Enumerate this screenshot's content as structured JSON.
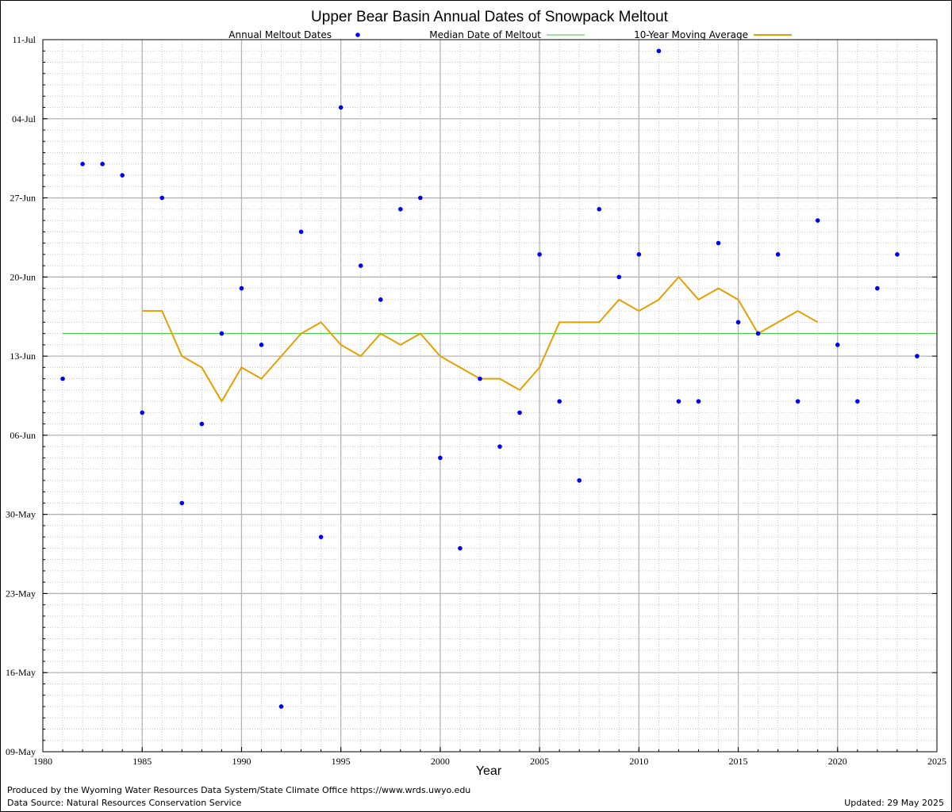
{
  "chart_data": {
    "type": "scatter",
    "title": "Upper Bear Basin Annual Dates of Snowpack Meltout",
    "xlabel": "Year",
    "ylabel": "",
    "xlim": [
      1980,
      2025
    ],
    "x_ticks": [
      1980,
      1985,
      1990,
      1995,
      2000,
      2005,
      2010,
      2015,
      2020,
      2025
    ],
    "y_unit": "day of year (non-leap), tick labels shown as dates",
    "ylim": [
      129,
      192
    ],
    "y_ticks": [
      {
        "value": 129,
        "label": "09-May"
      },
      {
        "value": 136,
        "label": "16-May"
      },
      {
        "value": 143,
        "label": "23-May"
      },
      {
        "value": 150,
        "label": "30-May"
      },
      {
        "value": 157,
        "label": "06-Jun"
      },
      {
        "value": 164,
        "label": "13-Jun"
      },
      {
        "value": 171,
        "label": "20-Jun"
      },
      {
        "value": 178,
        "label": "27-Jun"
      },
      {
        "value": 185,
        "label": "04-Jul"
      },
      {
        "value": 192,
        "label": "11-Jul"
      }
    ],
    "grid": true,
    "legend_position": "top",
    "series": [
      {
        "name": "Annual Meltout Dates",
        "kind": "scatter",
        "color": "#0000ee",
        "x": [
          1981,
          1982,
          1983,
          1984,
          1985,
          1986,
          1987,
          1988,
          1989,
          1990,
          1991,
          1992,
          1993,
          1994,
          1995,
          1996,
          1997,
          1998,
          1999,
          2000,
          2001,
          2002,
          2003,
          2004,
          2005,
          2006,
          2007,
          2008,
          2009,
          2010,
          2011,
          2012,
          2013,
          2014,
          2015,
          2016,
          2017,
          2018,
          2019,
          2020,
          2021,
          2022,
          2023,
          2024
        ],
        "y": [
          162,
          181,
          181,
          180,
          159,
          178,
          151,
          158,
          166,
          170,
          165,
          133,
          175,
          148,
          186,
          172,
          169,
          177,
          178,
          155,
          147,
          162,
          156,
          159,
          173,
          160,
          153,
          177,
          171,
          173,
          191,
          160,
          160,
          174,
          167,
          166,
          173,
          160,
          176,
          165,
          160,
          170,
          173,
          164
        ]
      },
      {
        "name": "Median Date of Meltout",
        "kind": "hline",
        "color": "#33cc33",
        "y": 166
      },
      {
        "name": "10-Year Moving Average",
        "kind": "line",
        "color": "#e69f00",
        "x": [
          1985,
          1986,
          1987,
          1988,
          1989,
          1990,
          1991,
          1992,
          1993,
          1994,
          1995,
          1996,
          1997,
          1998,
          1999,
          2000,
          2001,
          2002,
          2003,
          2004,
          2005,
          2006,
          2007,
          2008,
          2009,
          2010,
          2011,
          2012,
          2013,
          2014,
          2015,
          2016,
          2017,
          2018,
          2019
        ],
        "y": [
          168,
          168,
          164,
          163,
          160,
          163,
          162,
          164,
          166,
          167,
          165,
          164,
          166,
          165,
          166,
          164,
          163,
          162,
          162,
          161,
          163,
          167,
          167,
          167,
          169,
          168,
          169,
          171,
          169,
          170,
          169,
          166,
          167,
          168,
          167
        ]
      }
    ]
  },
  "footer": {
    "produced_by": "Produced by the Wyoming Water Resources Data System/State Climate Office https://www.wrds.uwyo.edu",
    "data_source": "Data Source: Natural Resources Conservation Service",
    "updated": "Updated: 29 May 2025"
  }
}
